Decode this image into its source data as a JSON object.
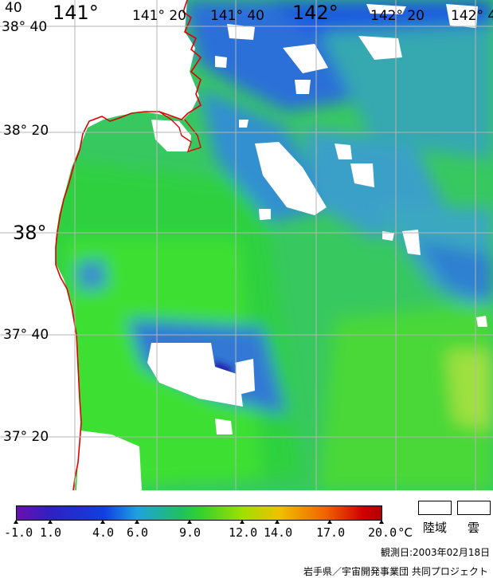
{
  "map": {
    "lon_labels": [
      {
        "id": "lon-141-00",
        "text": "141°"
      },
      {
        "id": "lon-141-20",
        "text": "141° 20"
      },
      {
        "id": "lon-141-40",
        "text": "141° 40"
      },
      {
        "id": "lon-142-00",
        "text": "142°"
      },
      {
        "id": "lon-142-20",
        "text": "142° 20"
      },
      {
        "id": "lon-142-40",
        "text": "142° 4"
      }
    ],
    "lat_labels": [
      {
        "id": "lat-38-40",
        "text": "38° 40"
      },
      {
        "id": "lat-38-20",
        "text": "38° 20"
      },
      {
        "id": "lat-38-00",
        "text": "38°"
      },
      {
        "id": "lat-37-40",
        "text": "37° 40"
      },
      {
        "id": "lat-37-20",
        "text": "37° 20"
      }
    ],
    "corner_label": "40",
    "colors": {
      "coastline": "#e00000",
      "grid": "#b4b4b4",
      "cloud": "#ffffff",
      "land": "#ffffff"
    }
  },
  "colorbar": {
    "labels": [
      "-1.0",
      "1.0",
      "4.0",
      "6.0",
      "9.0",
      "12.0",
      "14.0",
      "17.0",
      "20.0"
    ],
    "unit": "°C",
    "range": [
      -1.0,
      20.0
    ]
  },
  "legend": {
    "land": "陸域",
    "cloud": "雲"
  },
  "observation_date": "観測日:2003年02月18日",
  "credit": "岩手県／宇宙開発事業団 共同プロジェクト"
}
